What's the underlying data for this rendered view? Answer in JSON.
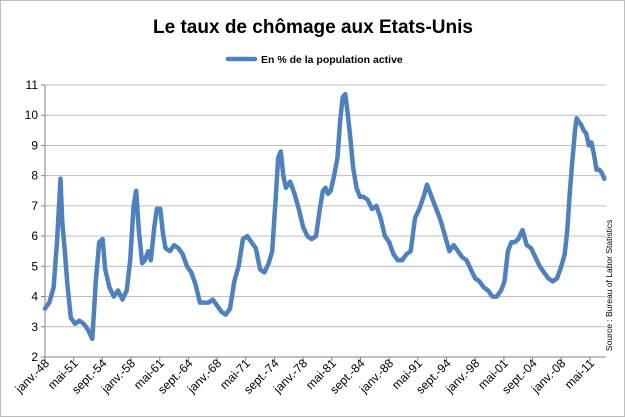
{
  "chart_data": {
    "type": "line",
    "title": "Le taux de chômage aux Etats-Unis",
    "source": "Source : Bureau of Labor Statistics",
    "ylim": [
      2,
      11
    ],
    "y_ticks": [
      2,
      3,
      4,
      5,
      6,
      7,
      8,
      9,
      10,
      11
    ],
    "grid": true,
    "legend_position": "top",
    "x_tick_labels": [
      "janv.-48",
      "mai-51",
      "sept.-54",
      "janv.-58",
      "mai-61",
      "sept.-64",
      "janv.-68",
      "mai-71",
      "sept.-74",
      "janv.-78",
      "mai-81",
      "sept.-84",
      "janv.-88",
      "mai-91",
      "sept.-94",
      "janv.-98",
      "mai-01",
      "sept.-04",
      "janv.-08",
      "mai-11"
    ],
    "colors": {
      "line": "#4f81bd",
      "grid": "#bfbfbf",
      "axis": "#808080"
    },
    "series": [
      {
        "name": "En % de la population active",
        "x": [
          1948.0,
          1948.5,
          1949.0,
          1949.4,
          1949.8,
          1950.0,
          1950.3,
          1950.6,
          1951.0,
          1951.5,
          1952.0,
          1952.5,
          1953.0,
          1953.5,
          1953.9,
          1954.3,
          1954.7,
          1955.0,
          1955.5,
          1956.0,
          1956.5,
          1957.0,
          1957.5,
          1957.9,
          1958.3,
          1958.6,
          1958.9,
          1959.3,
          1959.6,
          1960.0,
          1960.3,
          1960.7,
          1961.0,
          1961.4,
          1961.7,
          1962.0,
          1962.5,
          1963.0,
          1963.5,
          1964.0,
          1964.5,
          1965.0,
          1965.5,
          1966.0,
          1966.5,
          1967.0,
          1967.5,
          1968.0,
          1968.5,
          1969.0,
          1969.5,
          1970.0,
          1970.5,
          1971.0,
          1971.5,
          1972.0,
          1972.5,
          1973.0,
          1973.5,
          1974.0,
          1974.4,
          1974.8,
          1975.1,
          1975.4,
          1975.7,
          1976.0,
          1976.5,
          1977.0,
          1977.5,
          1978.0,
          1978.5,
          1979.0,
          1979.5,
          1980.0,
          1980.3,
          1980.6,
          1980.9,
          1981.2,
          1981.6,
          1982.0,
          1982.3,
          1982.6,
          1982.9,
          1983.2,
          1983.5,
          1983.8,
          1984.2,
          1984.6,
          1985.0,
          1985.5,
          1986.0,
          1986.5,
          1987.0,
          1987.5,
          1988.0,
          1988.5,
          1989.0,
          1989.5,
          1990.0,
          1990.5,
          1991.0,
          1991.5,
          1992.0,
          1992.4,
          1992.8,
          1993.2,
          1993.6,
          1994.0,
          1994.5,
          1995.0,
          1995.5,
          1996.0,
          1996.5,
          1997.0,
          1997.5,
          1998.0,
          1998.5,
          1999.0,
          1999.5,
          2000.0,
          2000.5,
          2001.0,
          2001.4,
          2001.8,
          2002.2,
          2002.6,
          2003.0,
          2003.5,
          2004.0,
          2004.5,
          2005.0,
          2005.5,
          2006.0,
          2006.5,
          2007.0,
          2007.5,
          2008.0,
          2008.4,
          2008.7,
          2009.0,
          2009.3,
          2009.6,
          2009.8,
          2010.0,
          2010.3,
          2010.6,
          2010.9,
          2011.2,
          2011.5,
          2011.8,
          2012.1,
          2012.4,
          2012.7,
          2013.0
        ],
        "values": [
          3.6,
          3.8,
          4.3,
          5.8,
          7.9,
          6.5,
          5.5,
          4.4,
          3.3,
          3.1,
          3.2,
          3.1,
          2.9,
          2.6,
          4.5,
          5.8,
          5.9,
          4.9,
          4.3,
          4.0,
          4.2,
          3.9,
          4.2,
          5.2,
          7.0,
          7.5,
          6.2,
          5.1,
          5.2,
          5.5,
          5.2,
          6.3,
          6.9,
          6.9,
          6.1,
          5.6,
          5.5,
          5.7,
          5.6,
          5.4,
          5.0,
          4.8,
          4.4,
          3.8,
          3.8,
          3.8,
          3.9,
          3.7,
          3.5,
          3.4,
          3.6,
          4.5,
          5.0,
          5.9,
          6.0,
          5.8,
          5.6,
          4.9,
          4.8,
          5.1,
          5.5,
          7.2,
          8.6,
          8.8,
          8.0,
          7.6,
          7.8,
          7.4,
          6.9,
          6.3,
          6.0,
          5.9,
          6.0,
          7.0,
          7.5,
          7.6,
          7.4,
          7.5,
          8.0,
          8.6,
          9.8,
          10.6,
          10.7,
          10.0,
          9.2,
          8.3,
          7.6,
          7.3,
          7.3,
          7.2,
          6.9,
          7.0,
          6.6,
          6.0,
          5.8,
          5.4,
          5.2,
          5.2,
          5.4,
          5.5,
          6.6,
          6.9,
          7.3,
          7.7,
          7.4,
          7.1,
          6.8,
          6.5,
          6.0,
          5.5,
          5.7,
          5.5,
          5.3,
          5.2,
          4.9,
          4.6,
          4.5,
          4.3,
          4.2,
          4.0,
          4.0,
          4.2,
          4.5,
          5.5,
          5.8,
          5.8,
          5.9,
          6.2,
          5.7,
          5.6,
          5.3,
          5.0,
          4.8,
          4.6,
          4.5,
          4.6,
          5.0,
          5.4,
          6.2,
          7.5,
          8.5,
          9.5,
          9.9,
          9.8,
          9.7,
          9.5,
          9.4,
          9.0,
          9.1,
          8.7,
          8.2,
          8.2,
          8.1,
          7.9
        ]
      }
    ]
  }
}
